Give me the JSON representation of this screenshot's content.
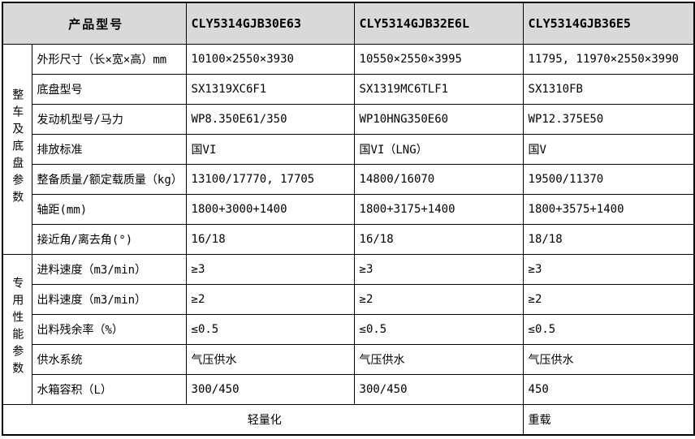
{
  "chart_data": {
    "type": "table",
    "header": {
      "product_model_label": "产品型号",
      "models": [
        "CLY5314GJB30E63",
        "CLY5314GJB32E6L",
        "CLY5314GJB36E5"
      ]
    },
    "sections": [
      {
        "side_label": "整车及底盘参数",
        "rows": [
          {
            "label": "外形尺寸（长×宽×高）mm",
            "values": [
              "10100×2550×3930",
              "10550×2550×3995",
              "11795, 11970×2550×3990"
            ]
          },
          {
            "label": "底盘型号",
            "values": [
              "SX1319XC6F1",
              "SX1319MC6TLF1",
              "SX1310FB"
            ]
          },
          {
            "label": "发动机型号/马力",
            "values": [
              "WP8.350E61/350",
              "WP10HNG350E60",
              "WP12.375E50"
            ]
          },
          {
            "label": "排放标准",
            "values": [
              "国VI",
              "国VI（LNG）",
              "国V"
            ]
          },
          {
            "label": "整备质量/额定载质量（kg）",
            "values": [
              "13100/17770, 17705",
              "14800/16070",
              "19500/11370"
            ]
          },
          {
            "label": "轴距(mm)",
            "values": [
              "1800+3000+1400",
              "1800+3175+1400",
              "1800+3575+1400"
            ]
          },
          {
            "label": "接近角/离去角(°)",
            "values": [
              "16/18",
              "16/18",
              "18/18"
            ]
          }
        ]
      },
      {
        "side_label": "专用性能参数",
        "rows": [
          {
            "label": "进料速度（m3/min）",
            "values": [
              "≥3",
              "≥3",
              "≥3"
            ]
          },
          {
            "label": "出料速度（m3/min）",
            "values": [
              "≥2",
              "≥2",
              "≥2"
            ]
          },
          {
            "label": "出料残余率（%）",
            "values": [
              "≤0.5",
              "≤0.5",
              "≤0.5"
            ]
          },
          {
            "label": "供水系统",
            "values": [
              "气压供水",
              "气压供水",
              "气压供水"
            ]
          },
          {
            "label": "水箱容积（L）",
            "values": [
              "300/450",
              "300/450",
              "450"
            ]
          }
        ]
      }
    ],
    "footer": {
      "left": "轻量化",
      "right": "重载"
    }
  },
  "colors": {
    "header_bg": "#d9d9d9",
    "border": "#000000",
    "background": "#ffffff",
    "text": "#000000"
  }
}
